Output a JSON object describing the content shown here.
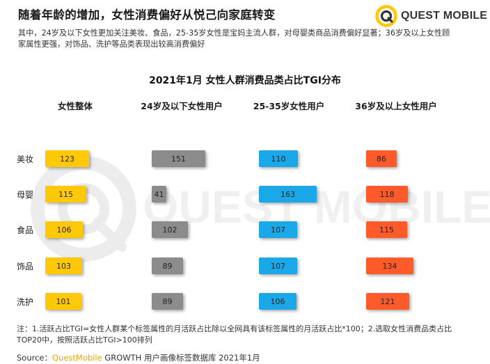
{
  "header": {
    "headline": "随着年龄的增加，女性消费偏好从悦己向家庭转变",
    "subtitle": "其中，24岁及以下女性更加关注美妆、食品，25-35岁女性是宝妈主流人群，对母婴类商品消费偏好显著；36岁及以上女性顾家属性更强，对饰品、洗护等品类表现出较高消费偏好",
    "logo_text": "QUEST MOBILE"
  },
  "watermark_text": "QUEST MOBILE",
  "chart_data": {
    "type": "bar",
    "title": "2021年1月 女性人群消费品类占比TGI分布",
    "categories": [
      "美妆",
      "母婴",
      "食品",
      "饰品",
      "洗护"
    ],
    "series": [
      {
        "name": "女性整体",
        "color": "#FFC907",
        "values": [
          123,
          115,
          106,
          103,
          101
        ]
      },
      {
        "name": "24岁及以下女性用户",
        "color": "#8C8C8C",
        "values": [
          151,
          41,
          102,
          89,
          89
        ]
      },
      {
        "name": "25-35岁女性用户",
        "color": "#1BA8E8",
        "values": [
          110,
          163,
          107,
          107,
          106
        ]
      },
      {
        "name": "36岁及以上女性用户",
        "color": "#FF5A2A",
        "values": [
          86,
          118,
          115,
          134,
          121
        ]
      }
    ]
  },
  "footer": {
    "note": "注：1.活跃占比TGI=女性人群某个标签属性的月活跃占比除以全网具有该标签属性的月活跃占比*100；2.选取女性消费品类占比TOP20中，按照活跃占比TGI>100排列",
    "source_prefix": "Source：",
    "source_brand": "QuestMobile",
    "source_rest": " GROWTH 用户画像标签数据库 2021年1月"
  },
  "colors": {
    "brand_yellow": "#FFC907",
    "gray": "#8C8C8C",
    "blue": "#1BA8E8",
    "orange": "#FF5A2A"
  }
}
